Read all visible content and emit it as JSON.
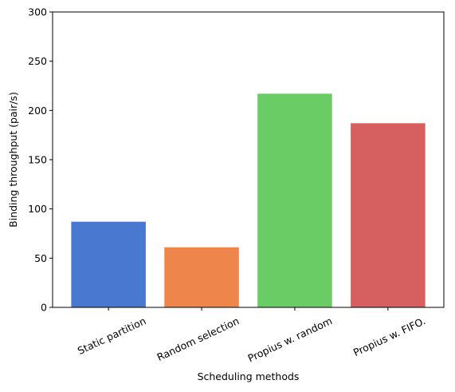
{
  "chart_data": {
    "type": "bar",
    "categories": [
      "Static partition",
      "Random selection",
      "Propius w. random",
      "Propius w. FIFO."
    ],
    "values": [
      87,
      61,
      217,
      187
    ],
    "colors": [
      "#4878cf",
      "#ee854a",
      "#6acc64",
      "#d65f5f"
    ],
    "title": "",
    "xlabel": "Scheduling methods",
    "ylabel": "Binding throughput (pair/s)",
    "ylim": [
      0,
      300
    ],
    "yticks": [
      0,
      50,
      100,
      150,
      200,
      250,
      300
    ],
    "grid": false,
    "xtick_rotation_deg": 25
  }
}
